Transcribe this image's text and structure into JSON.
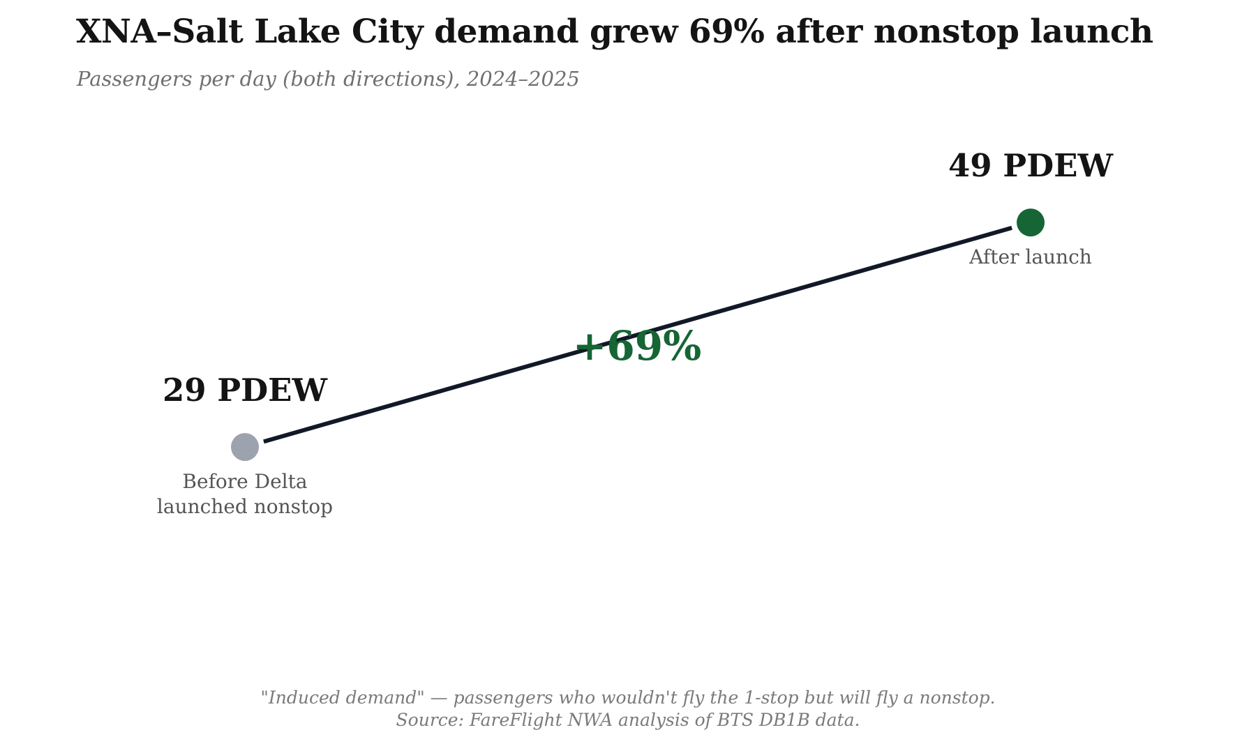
{
  "header": {
    "title": "XNA–Salt Lake City demand grew 69% after nonstop launch",
    "subtitle": "Passengers per day (both directions), 2024–2025"
  },
  "chart_data": {
    "type": "line",
    "categories": [
      "Before Delta launched nonstop",
      "After launch"
    ],
    "category_lines": [
      [
        "Before Delta",
        "launched nonstop"
      ],
      [
        "After launch"
      ]
    ],
    "values": [
      29,
      49
    ],
    "value_labels": [
      "29 PDEW",
      "49 PDEW"
    ],
    "change_label": "+69%",
    "point_colors": [
      "#9ca3af",
      "#166534"
    ],
    "line_color": "#111827",
    "change_color": "#166534",
    "grid": false,
    "legend": "none"
  },
  "footer": {
    "note": "\"Induced demand\" — passengers who wouldn't fly the 1-stop but will fly a nonstop.",
    "source": "Source: FareFlight NWA analysis of BTS DB1B data."
  }
}
